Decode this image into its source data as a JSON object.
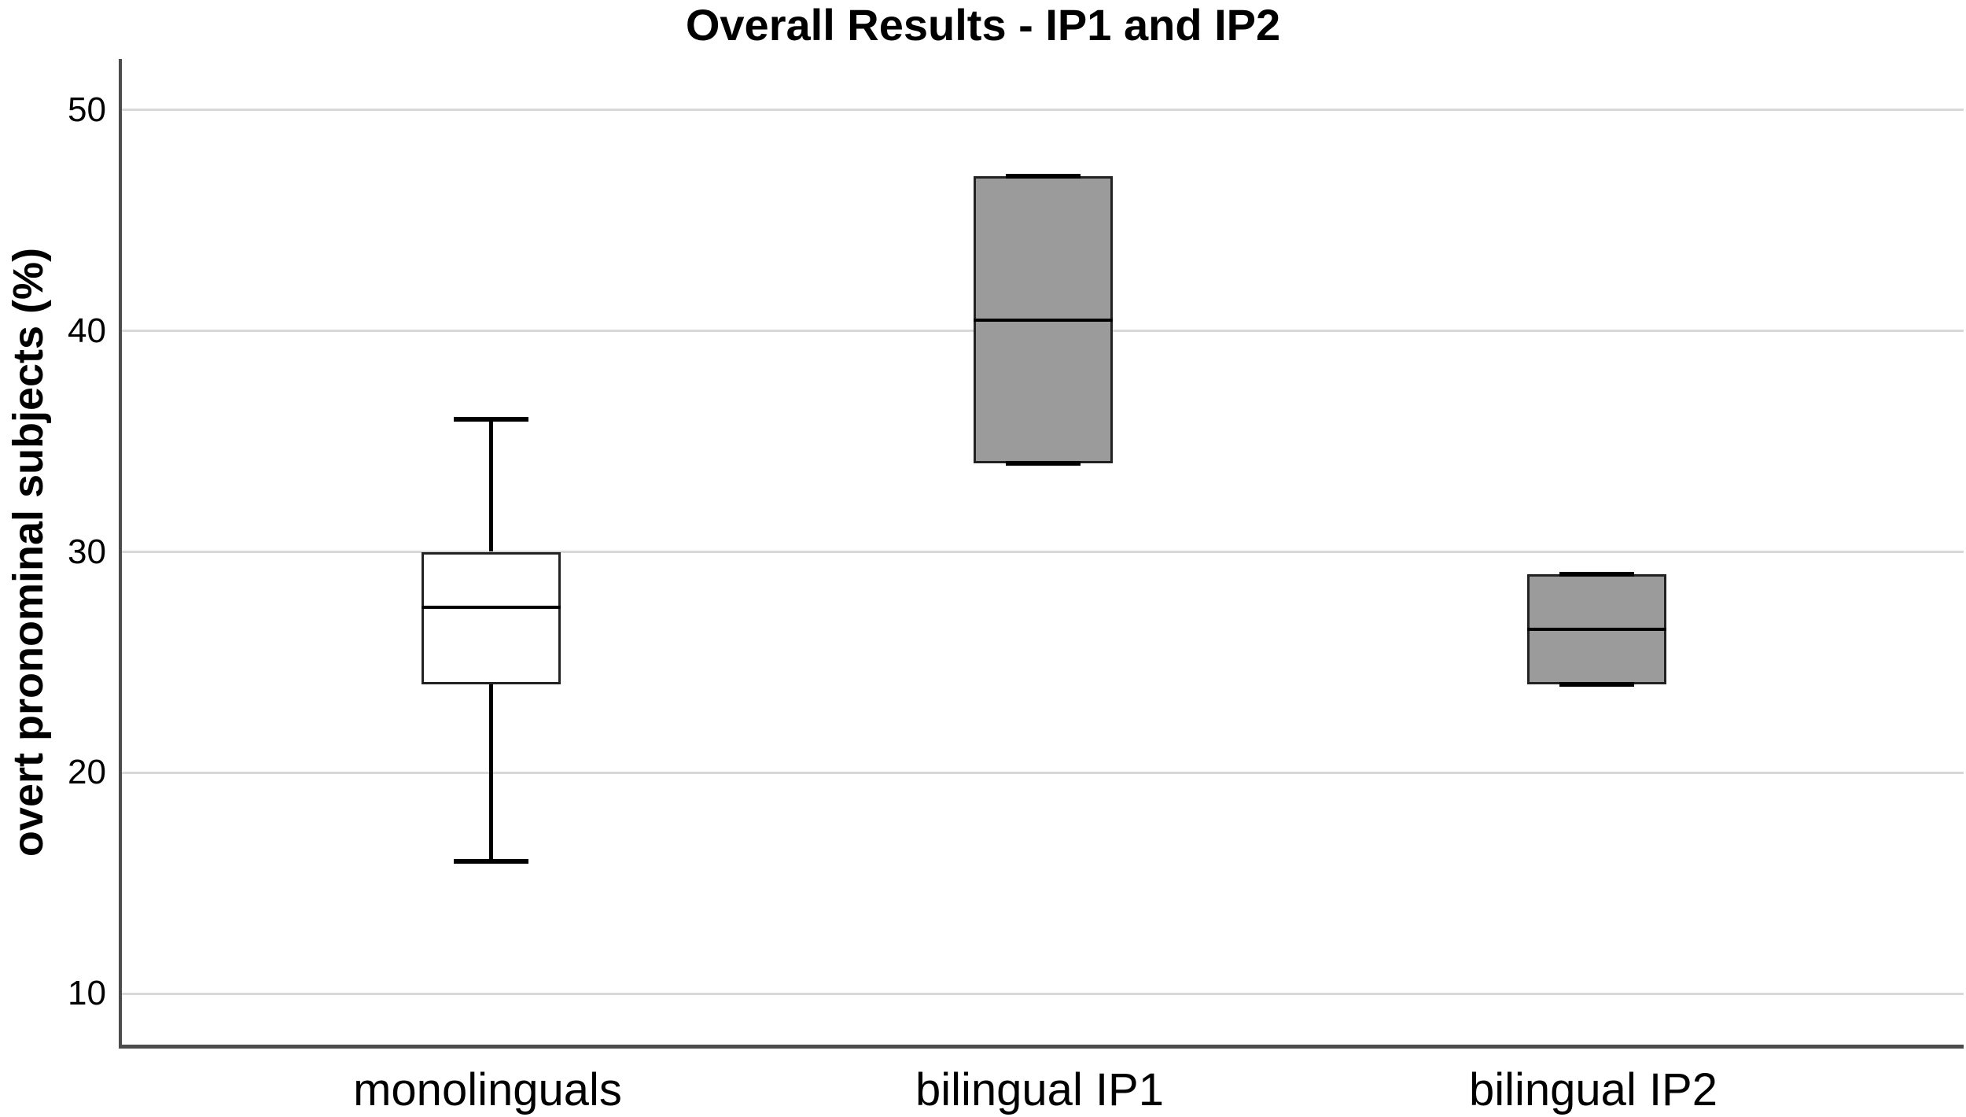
{
  "chart_data": {
    "type": "boxplot",
    "title": "Overall Results - IP1 and IP2",
    "ylabel": "overt pronominal subjects (%)",
    "xlabel": "",
    "yticks": [
      10,
      20,
      30,
      40,
      50
    ],
    "ylim": [
      7.7,
      52.3
    ],
    "grid": "horizontal-light-gray",
    "legend": "none",
    "categories": [
      "monolinguals",
      "bilingual IP1",
      "bilingual IP2"
    ],
    "series": [
      {
        "category": "monolinguals",
        "whisker_min": 16,
        "q1": 24,
        "median": 27.5,
        "q3": 30,
        "whisker_max": 36,
        "fill": "#ffffff"
      },
      {
        "category": "bilingual IP1",
        "whisker_min": 34,
        "q1": 34,
        "median": 40.5,
        "q3": 47,
        "whisker_max": 47,
        "fill": "#9b9b9b"
      },
      {
        "category": "bilingual IP2",
        "whisker_min": 24,
        "q1": 24,
        "median": 26.5,
        "q3": 29,
        "whisker_max": 29,
        "fill": "#9b9b9b"
      }
    ],
    "colors": {
      "grid": "#d8d8d8",
      "axis": "#4c4c4c",
      "box_border": "#222222",
      "median": "#000000",
      "whisker": "#000000",
      "text": "#000000",
      "background": "#ffffff"
    }
  }
}
